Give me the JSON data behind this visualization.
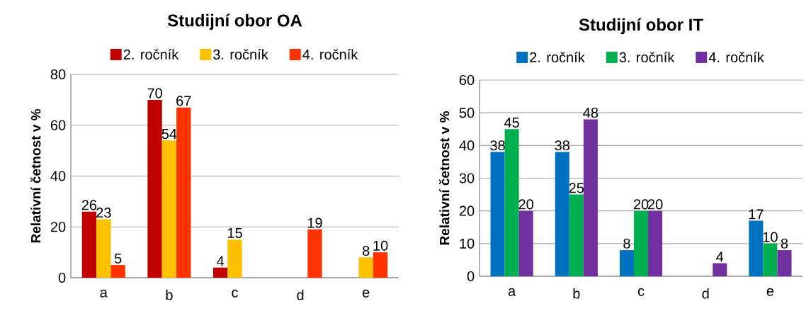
{
  "chart_data": [
    {
      "type": "bar",
      "title": "Studijní obor OA",
      "ylabel": "Relativní četnost v %",
      "categories": [
        "a",
        "b",
        "c",
        "d",
        "e"
      ],
      "series": [
        {
          "name": "2. ročník",
          "color": "#c00000",
          "values": [
            26,
            70,
            4,
            null,
            null
          ]
        },
        {
          "name": "3. ročník",
          "color": "#ffc000",
          "values": [
            23,
            54,
            15,
            null,
            8
          ]
        },
        {
          "name": "4. ročník",
          "color": "#ff3300",
          "values": [
            5,
            67,
            null,
            19,
            10
          ]
        }
      ],
      "ylim": [
        0,
        80
      ],
      "yticks": [
        0,
        20,
        40,
        60,
        80
      ],
      "grid": "y",
      "legend": "top",
      "data_labels": true
    },
    {
      "type": "bar",
      "title": "Studijní obor IT",
      "ylabel": "Relativní četnost v %",
      "categories": [
        "a",
        "b",
        "c",
        "d",
        "e"
      ],
      "series": [
        {
          "name": "2. ročník",
          "color": "#0070c0",
          "values": [
            38,
            38,
            8,
            null,
            17
          ]
        },
        {
          "name": "3. ročník",
          "color": "#00b050",
          "values": [
            45,
            25,
            20,
            null,
            10
          ]
        },
        {
          "name": "4. ročník",
          "color": "#7030a0",
          "values": [
            20,
            48,
            20,
            4,
            8
          ]
        }
      ],
      "ylim": [
        0,
        60
      ],
      "yticks": [
        0,
        10,
        20,
        30,
        40,
        50,
        60
      ],
      "grid": "y",
      "legend": "top",
      "data_labels": true
    }
  ]
}
